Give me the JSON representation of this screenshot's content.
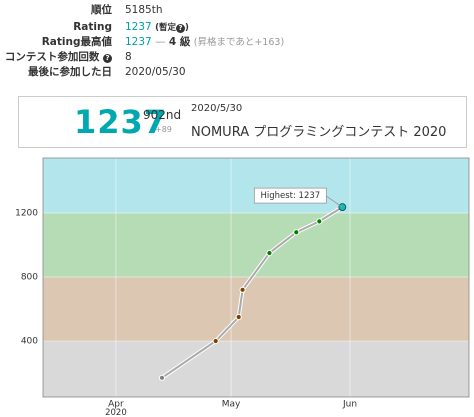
{
  "profile": {
    "rank": {
      "label": "順位",
      "value": "5185th"
    },
    "rating": {
      "label": "Rating",
      "value": "1237",
      "note_open": "(暫定",
      "note_close": ")"
    },
    "highest": {
      "label": "Rating最高値",
      "value": "1237",
      "dash": "—",
      "grade": "4 級",
      "note": "(昇格まであと+163)"
    },
    "contests": {
      "label": "コンテスト参加回数",
      "value": "8"
    },
    "last": {
      "label": "最後に参加した日",
      "value": "2020/05/30"
    }
  },
  "card": {
    "rating": "1237",
    "place": "902nd",
    "diff": "+89",
    "date": "2020/5/30",
    "contest": "NOMURA プログラミングコンテスト 2020"
  },
  "chart_data": {
    "type": "line",
    "x": [
      104,
      118,
      124,
      125,
      132,
      139,
      145,
      151
    ],
    "values": [
      170,
      400,
      550,
      720,
      950,
      1080,
      1148,
      1237
    ],
    "xlim": [
      73,
      184
    ],
    "ylim": [
      50,
      1544
    ],
    "xticks": [
      {
        "value": 92,
        "label": "Apr"
      },
      {
        "value": 122,
        "label": "May"
      },
      {
        "value": 153,
        "label": "Jun"
      }
    ],
    "x_year_label": "2020",
    "yticks": [
      400,
      800,
      1200
    ],
    "grid": true,
    "line_color": "#aaaaaa",
    "bands": [
      {
        "min": 0,
        "max": 400,
        "color": "#d9d9d9",
        "point_color": "#808080"
      },
      {
        "min": 400,
        "max": 800,
        "color": "#dcc7b2",
        "point_color": "#804000"
      },
      {
        "min": 800,
        "max": 1200,
        "color": "#b5dcb5",
        "point_color": "#008000"
      },
      {
        "min": 1200,
        "max": 1600,
        "color": "#b2e6ec",
        "point_color": "#00c0c0"
      }
    ],
    "annotation": "Highest: 1237"
  }
}
